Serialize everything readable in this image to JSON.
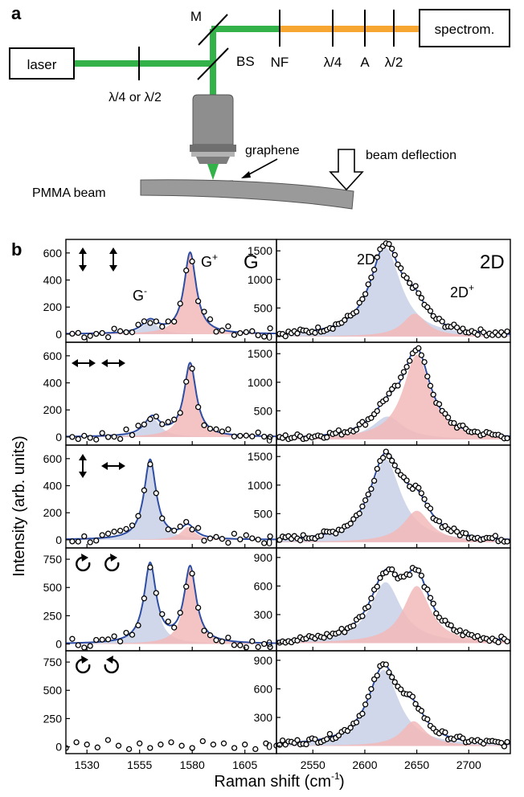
{
  "panel_a": {
    "letter": "a",
    "laser": "laser",
    "spectrometer": "spectrom.",
    "mirror": "M",
    "beamsplitter": "BS",
    "notch_filter": "NF",
    "waveplate_in": "λ/4 or λ/2",
    "qwp_out": "λ/4",
    "analyzer": "A",
    "hwp_out": "λ/2",
    "graphene": "graphene",
    "beam_deflection": "beam deflection",
    "pmma_beam": "PMMA beam",
    "colors": {
      "green_beam": "#33b24a",
      "orange_beam": "#f7a731",
      "objective": "#8c8c8c",
      "beam_body": "#9a9a9a"
    }
  },
  "panel_b": {
    "letter": "b",
    "ylabel": "Intensity (arb. units)",
    "xlabel": "Raman shift (cm",
    "xlabel_sup": "-1",
    "xlabel_end": ")",
    "G_title": "G",
    "D_title": "2D",
    "G_minus": "G",
    "G_minus_sup": "-",
    "G_plus": "G",
    "G_plus_sup": "+",
    "D_minus": "2D",
    "D_minus_sup": "-",
    "D_plus": "2D",
    "D_plus_sup": "+",
    "polarization_icons": [
      [
        "arrow-vertical",
        "arrow-vertical"
      ],
      [
        "arrow-horizontal",
        "arrow-horizontal"
      ],
      [
        "arrow-vertical",
        "arrow-horizontal"
      ],
      [
        "circular-cw",
        "circular-cw"
      ],
      [
        "circular-cw",
        "circular-ccw"
      ]
    ],
    "colors": {
      "fit": "#2f4ea3",
      "minus_fill": "#c8d0e6",
      "plus_fill": "#f2b9b9",
      "points": "#000000"
    }
  },
  "chart_data": [
    {
      "type": "line",
      "panel": "G",
      "row": 1,
      "polarization": "vertical / vertical",
      "xlim": [
        1520,
        1620
      ],
      "ylim": [
        -60,
        700
      ],
      "yticks": [
        0,
        200,
        400,
        600
      ],
      "series": [
        {
          "values": []
        }
      ],
      "peaks": {
        "minus": {
          "center": 1560,
          "amp": 95,
          "width": 4.5
        },
        "plus": {
          "center": 1579,
          "amp": 600,
          "width": 3.5
        }
      }
    },
    {
      "type": "line",
      "panel": "G",
      "row": 2,
      "polarization": "horizontal / horizontal",
      "xlim": [
        1520,
        1620
      ],
      "ylim": [
        -60,
        700
      ],
      "yticks": [
        0,
        200,
        400,
        600
      ],
      "series": [
        {
          "values": []
        }
      ],
      "peaks": {
        "minus": {
          "center": 1561,
          "amp": 140,
          "width": 4.5
        },
        "plus": {
          "center": 1579,
          "amp": 540,
          "width": 3.5
        }
      }
    },
    {
      "type": "line",
      "panel": "G",
      "row": 3,
      "polarization": "vertical / horizontal",
      "xlim": [
        1520,
        1620
      ],
      "ylim": [
        -60,
        700
      ],
      "yticks": [
        0,
        200,
        400,
        600
      ],
      "series": [
        {
          "values": []
        }
      ],
      "peaks": {
        "minus": {
          "center": 1560,
          "amp": 590,
          "width": 3.5
        },
        "plus": {
          "center": 1578,
          "amp": 95,
          "width": 4
        }
      }
    },
    {
      "type": "line",
      "panel": "G",
      "row": 4,
      "polarization": "circular / circular (same)",
      "xlim": [
        1520,
        1620
      ],
      "ylim": [
        -60,
        850
      ],
      "yticks": [
        0,
        250,
        500,
        750
      ],
      "series": [
        {
          "values": []
        }
      ],
      "peaks": {
        "minus": {
          "center": 1560,
          "amp": 700,
          "width": 3.5
        },
        "plus": {
          "center": 1579,
          "amp": 670,
          "width": 3.5
        }
      }
    },
    {
      "type": "scatter",
      "panel": "G",
      "row": 5,
      "polarization": "circular / circular (opposite)",
      "xlim": [
        1520,
        1620
      ],
      "ylim": [
        -60,
        850
      ],
      "yticks": [
        0,
        250,
        500,
        750
      ],
      "x": [
        1520,
        1525,
        1530,
        1535,
        1540,
        1545,
        1550,
        1555,
        1560,
        1565,
        1570,
        1575,
        1580,
        1585,
        1590,
        1595,
        1600,
        1605,
        1610,
        1615,
        1620
      ],
      "series": [
        {
          "values": [
            -10,
            40,
            20,
            -5,
            60,
            10,
            -20,
            30,
            -10,
            20,
            40,
            10,
            -10,
            50,
            20,
            30,
            -10,
            20,
            -20,
            30,
            10
          ]
        }
      ]
    },
    {
      "type": "line",
      "panel": "2D",
      "row": 1,
      "polarization": "vertical / vertical",
      "xlim": [
        2515,
        2740
      ],
      "ylim": [
        -100,
        1700
      ],
      "yticks": [
        0,
        500,
        1000,
        1500
      ],
      "series": [
        {
          "values": []
        }
      ],
      "peaks": {
        "minus": {
          "center": 2620,
          "amp": 1550,
          "width": 18
        },
        "plus": {
          "center": 2648,
          "amp": 400,
          "width": 14
        }
      }
    },
    {
      "type": "line",
      "panel": "2D",
      "row": 2,
      "polarization": "horizontal / horizontal",
      "xlim": [
        2515,
        2740
      ],
      "ylim": [
        -100,
        1700
      ],
      "yticks": [
        0,
        500,
        1000,
        1500
      ],
      "series": [
        {
          "values": []
        }
      ],
      "peaks": {
        "minus": {
          "center": 2622,
          "amp": 400,
          "width": 18
        },
        "plus": {
          "center": 2650,
          "amp": 1480,
          "width": 16
        }
      }
    },
    {
      "type": "line",
      "panel": "2D",
      "row": 3,
      "polarization": "vertical / horizontal",
      "xlim": [
        2515,
        2740
      ],
      "ylim": [
        -100,
        1700
      ],
      "yticks": [
        0,
        500,
        1000,
        1500
      ],
      "series": [
        {
          "values": []
        }
      ],
      "peaks": {
        "minus": {
          "center": 2620,
          "amp": 1450,
          "width": 18
        },
        "plus": {
          "center": 2650,
          "amp": 550,
          "width": 16
        }
      }
    },
    {
      "type": "line",
      "panel": "2D",
      "row": 4,
      "polarization": "circular / circular (same)",
      "xlim": [
        2515,
        2740
      ],
      "ylim": [
        -80,
        1000
      ],
      "yticks": [
        0,
        300,
        600,
        900
      ],
      "series": [
        {
          "values": []
        }
      ],
      "peaks": {
        "minus": {
          "center": 2620,
          "amp": 640,
          "width": 18
        },
        "plus": {
          "center": 2650,
          "amp": 600,
          "width": 16
        }
      }
    },
    {
      "type": "line",
      "panel": "2D",
      "row": 5,
      "polarization": "circular / circular (opposite)",
      "xlim": [
        2515,
        2740
      ],
      "ylim": [
        -80,
        1000
      ],
      "yticks": [
        0,
        300,
        600,
        900
      ],
      "series": [
        {
          "values": []
        }
      ],
      "peaks": {
        "minus": {
          "center": 2618,
          "amp": 800,
          "width": 18
        },
        "plus": {
          "center": 2647,
          "amp": 260,
          "width": 14
        }
      }
    }
  ],
  "axes": {
    "G_xticks": [
      1530,
      1555,
      1580,
      1605
    ],
    "D_xticks": [
      2550,
      2600,
      2650,
      2700
    ]
  }
}
